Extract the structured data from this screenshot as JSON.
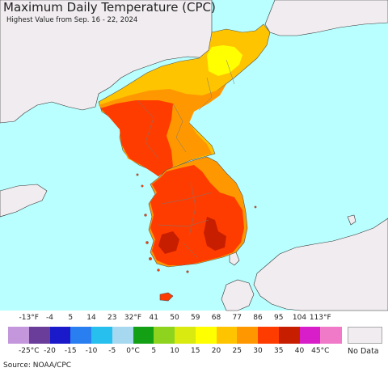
{
  "title": "Maximum Daily Temperature (CPC)",
  "subtitle": "Highest Value from Sep. 16 - 22, 2024",
  "source": "Source: NOAA/CPC",
  "legend": {
    "fahrenheit_ticks": [
      "-13°F",
      "-4",
      "5",
      "14",
      "23",
      "32°F",
      "41",
      "50",
      "59",
      "68",
      "77",
      "86",
      "95",
      "104",
      "113°F"
    ],
    "celsius_ticks": [
      "-25°C",
      "-20",
      "-15",
      "-10",
      "-5",
      "0°C",
      "5",
      "10",
      "15",
      "20",
      "25",
      "30",
      "35",
      "40",
      "45°C"
    ],
    "colors": [
      "#c497dd",
      "#6a3d9a",
      "#1a1acb",
      "#2a7ff0",
      "#27c0ee",
      "#a6d8f0",
      "#14a014",
      "#8ed41e",
      "#d8ea10",
      "#ffff00",
      "#ffc400",
      "#ff9800",
      "#ff3c00",
      "#c81e00",
      "#d81ec8",
      "#f07ac8"
    ],
    "no_data_label": "No Data",
    "no_data_color": "#f0ecef"
  },
  "map": {
    "sea_color": "#b9ffff",
    "no_data_land_color": "#f0ecef",
    "temperature_colors": {
      "yellow": "#ffff00",
      "orange_yellow": "#ffc400",
      "orange": "#ff9800",
      "red_orange": "#ff3c00",
      "dark_red": "#c81e00"
    }
  }
}
